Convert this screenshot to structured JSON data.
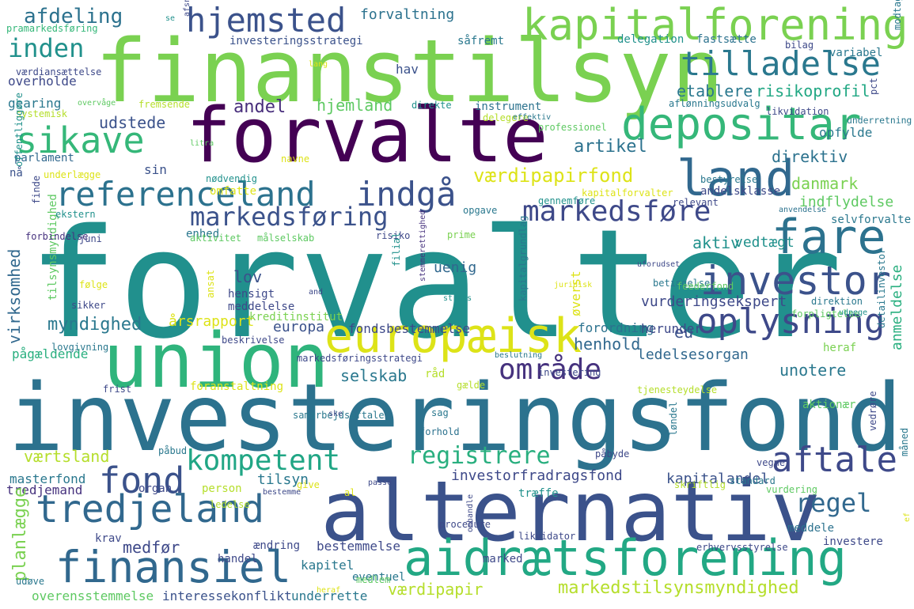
{
  "words": [
    {
      "text": "forvalter",
      "color": "#21908d"
    },
    {
      "text": "investeringsfond",
      "color": "#2c728e"
    },
    {
      "text": "finanstilsyn",
      "color": "#7ad151"
    },
    {
      "text": "alternativ",
      "color": "#3b528b"
    },
    {
      "text": "forvalte",
      "color": "#440154"
    },
    {
      "text": "union",
      "color": "#2fb47c"
    },
    {
      "text": "aidrætsforening",
      "color": "#22a884"
    },
    {
      "text": "kapitalforening",
      "color": "#7ad151"
    },
    {
      "text": "europæisk",
      "color": "#dde318"
    },
    {
      "text": "finansiel",
      "color": "#31688e"
    },
    {
      "text": "depositar",
      "color": "#35b779"
    },
    {
      "text": "land",
      "color": "#31688e"
    },
    {
      "text": "fare",
      "color": "#2c728e"
    },
    {
      "text": "investor",
      "color": "#3b528b"
    },
    {
      "text": "tredjeland",
      "color": "#31688e"
    },
    {
      "text": "oplysning",
      "color": "#3e4989"
    },
    {
      "text": "sikave",
      "color": "#35b779"
    },
    {
      "text": "tilladelse",
      "color": "#2a788e"
    },
    {
      "text": "referenceland",
      "color": "#2c728e"
    },
    {
      "text": "indgå",
      "color": "#3b528b"
    },
    {
      "text": "markedsføre",
      "color": "#3e4989"
    },
    {
      "text": "hjemsted",
      "color": "#3b528b"
    },
    {
      "text": "aftale",
      "color": "#3e4989"
    },
    {
      "text": "fond",
      "color": "#3b528b"
    },
    {
      "text": "område",
      "color": "#46327e"
    },
    {
      "text": "kompetent",
      "color": "#21a685"
    },
    {
      "text": "markedsføring",
      "color": "#3b528b"
    },
    {
      "text": "registrere",
      "color": "#29af7f"
    },
    {
      "text": "regel",
      "color": "#31688e"
    },
    {
      "text": "inden",
      "color": "#21918c"
    },
    {
      "text": "afdeling",
      "color": "#2c728e"
    },
    {
      "text": "værdipapirfond",
      "color": "#dde318"
    },
    {
      "text": "markedstilsynsmyndighed",
      "color": "#b5de2b"
    },
    {
      "text": "myndighed",
      "color": "#2a788e"
    },
    {
      "text": "udstede",
      "color": "#3b528b"
    },
    {
      "text": "andel",
      "color": "#472d7b"
    },
    {
      "text": "hjemland",
      "color": "#5ec962"
    },
    {
      "text": "artikel",
      "color": "#2c728e"
    },
    {
      "text": "etablere",
      "color": "#2a788e"
    },
    {
      "text": "risikoprofil",
      "color": "#22a884"
    },
    {
      "text": "forvaltning",
      "color": "#2c728e"
    },
    {
      "text": "direktiv",
      "color": "#2c728e"
    },
    {
      "text": "danmark",
      "color": "#7ad151"
    },
    {
      "text": "indflydelse",
      "color": "#5ec962"
    },
    {
      "text": "aktiv",
      "color": "#21918c"
    },
    {
      "text": "vedtægt",
      "color": "#21918c"
    },
    {
      "text": "eu",
      "color": "#3b528b"
    },
    {
      "text": "henhold",
      "color": "#31688e"
    },
    {
      "text": "ledelsesorgan",
      "color": "#31688e"
    },
    {
      "text": "unotere",
      "color": "#2a788e"
    },
    {
      "text": "selskab",
      "color": "#2a788e"
    },
    {
      "text": "lov",
      "color": "#3b528b"
    },
    {
      "text": "vurderingsekspert",
      "color": "#3e4989"
    },
    {
      "text": "anmeldelse",
      "color": "#29af7f"
    },
    {
      "text": "værtsland",
      "color": "#b5de2b"
    },
    {
      "text": "investorfradragsfond",
      "color": "#3e4989"
    },
    {
      "text": "tilsyn",
      "color": "#2a788e"
    },
    {
      "text": "kapitalandel",
      "color": "#3b528b"
    },
    {
      "text": "masterfond",
      "color": "#2a788e"
    },
    {
      "text": "tredjemand",
      "color": "#46327e"
    },
    {
      "text": "planlægge",
      "color": "#7ad151"
    },
    {
      "text": "medfør",
      "color": "#3e4989"
    },
    {
      "text": "virksomhed",
      "color": "#31688e"
    },
    {
      "text": "værdipapir",
      "color": "#b5de2b"
    },
    {
      "text": "overensstemmelse",
      "color": "#5ec962"
    },
    {
      "text": "interessekonflikt",
      "color": "#3b528b"
    },
    {
      "text": "underrette",
      "color": "#2a788e"
    },
    {
      "text": "kapitel",
      "color": "#2a788e"
    },
    {
      "text": "fondsbestemmelse",
      "color": "#3e4989"
    },
    {
      "text": "forordning",
      "color": "#2c728e"
    },
    {
      "text": "herunder",
      "color": "#3e4989"
    },
    {
      "text": "pågældende",
      "color": "#29af7f"
    },
    {
      "text": "årsrapport",
      "color": "#dde318"
    },
    {
      "text": "europa",
      "color": "#3b528b"
    },
    {
      "text": "uenig",
      "color": "#31688e"
    },
    {
      "text": "omfatte",
      "color": "#dde318"
    },
    {
      "text": "parlament",
      "color": "#31688e"
    },
    {
      "text": "opfylde",
      "color": "#2a788e"
    },
    {
      "text": "andelsklasse",
      "color": "#3e4989"
    },
    {
      "text": "instrument",
      "color": "#2c728e"
    },
    {
      "text": "delegation",
      "color": "#21918c"
    },
    {
      "text": "fastsætte",
      "color": "#2c728e"
    },
    {
      "text": "variabel",
      "color": "#2a788e"
    },
    {
      "text": "såfremt",
      "color": "#2a788e"
    },
    {
      "text": "investeringsstrategi",
      "color": "#3b528b"
    },
    {
      "text": "overholde",
      "color": "#3e4989"
    },
    {
      "text": "gearing",
      "color": "#2a788e"
    },
    {
      "text": "hav",
      "color": "#3b528b"
    },
    {
      "text": "enhed",
      "color": "#2a788e"
    },
    {
      "text": "hensigt",
      "color": "#3e4989"
    },
    {
      "text": "meddelelse",
      "color": "#3e4989"
    },
    {
      "text": "aktionær",
      "color": "#5ec962"
    },
    {
      "text": "heraf",
      "color": "#7ad151"
    },
    {
      "text": "selvforvalte",
      "color": "#2a788e"
    },
    {
      "text": "meddele",
      "color": "#2c728e"
    },
    {
      "text": "investere",
      "color": "#3e4989"
    },
    {
      "text": "bestemmelse",
      "color": "#3e4989"
    },
    {
      "text": "ændring",
      "color": "#3e4989"
    },
    {
      "text": "træffe",
      "color": "#21918c"
    },
    {
      "text": "krav",
      "color": "#3e4989"
    },
    {
      "text": "marked",
      "color": "#3e4989"
    },
    {
      "text": "tilsynsmyndighed",
      "color": "#5ec962"
    },
    {
      "text": "nå",
      "color": "#3b528b"
    },
    {
      "text": "sin",
      "color": "#3b528b"
    },
    {
      "text": "organ",
      "color": "#3e4989"
    },
    {
      "text": "person",
      "color": "#b5de2b"
    },
    {
      "text": "råd",
      "color": "#b5de2b"
    },
    {
      "text": "eventuel",
      "color": "#2a788e"
    },
    {
      "text": "handel",
      "color": "#3e4989"
    },
    {
      "text": "kreditinstitut",
      "color": "#7ad151"
    },
    {
      "text": "øverst",
      "color": "#dde318"
    },
    {
      "text": "ansat",
      "color": "#dde318"
    },
    {
      "text": "risiko",
      "color": "#3e4989"
    },
    {
      "text": "aktivitet",
      "color": "#5ec962"
    },
    {
      "text": "målselskab",
      "color": "#5ec962"
    },
    {
      "text": "forbindelse",
      "color": "#46327e"
    },
    {
      "text": "ekstern",
      "color": "#21918c"
    },
    {
      "text": "opgave",
      "color": "#2a788e"
    },
    {
      "text": "gennemføre",
      "color": "#21918c"
    },
    {
      "text": "kapitalforvalter",
      "color": "#dde318"
    },
    {
      "text": "relevant",
      "color": "#3e4989"
    },
    {
      "text": "anvendelse",
      "color": "#2c728e"
    },
    {
      "text": "bestyrelse",
      "color": "#2a788e"
    },
    {
      "text": "professionel",
      "color": "#5ec962"
    },
    {
      "text": "delegere",
      "color": "#b5de2b"
    },
    {
      "text": "direkte",
      "color": "#21918c"
    },
    {
      "text": "effektiv",
      "color": "#2a788e"
    },
    {
      "text": "fremsende",
      "color": "#b5de2b"
    },
    {
      "text": "overvåge",
      "color": "#5ec962"
    },
    {
      "text": "systemisk",
      "color": "#b5de2b"
    },
    {
      "text": "værdiansættelse",
      "color": "#3e4989"
    },
    {
      "text": "pramarkedsføring",
      "color": "#35b779"
    },
    {
      "text": "offentliggøre",
      "color": "#21918c"
    },
    {
      "text": "litra",
      "color": "#5ec962"
    },
    {
      "text": "nødvendig",
      "color": "#21918c"
    },
    {
      "text": "underlægge",
      "color": "#dde318"
    },
    {
      "text": "finde",
      "color": "#3e4989"
    },
    {
      "text": "navne",
      "color": "#dde318"
    },
    {
      "text": "juni",
      "color": "#3e4989"
    },
    {
      "text": "prime",
      "color": "#7ad151"
    },
    {
      "text": "filial",
      "color": "#21918c"
    },
    {
      "text": "stemmerettighed",
      "color": "#46327e"
    },
    {
      "text": "følge",
      "color": "#dde318"
    },
    {
      "text": "sikker",
      "color": "#3e4989"
    },
    {
      "text": "and",
      "color": "#3e4989"
    },
    {
      "text": "straks",
      "color": "#21918c"
    },
    {
      "text": "kapitalgrundlag",
      "color": "#2a788e"
    },
    {
      "text": "juridisk",
      "color": "#dde318"
    },
    {
      "text": "uforudset",
      "color": "#3e4989"
    },
    {
      "text": "betingelse",
      "color": "#2a788e"
    },
    {
      "text": "feederfond",
      "color": "#5ec962"
    },
    {
      "text": "direktion",
      "color": "#2a788e"
    },
    {
      "text": "detailinvestor",
      "color": "#2a788e"
    },
    {
      "text": "forpligtelse",
      "color": "#5ec962"
    },
    {
      "text": "udpege",
      "color": "#21918c"
    },
    {
      "text": "beskrivelse",
      "color": "#3e4989"
    },
    {
      "text": "markedsføringsstrategi",
      "color": "#3e4989"
    },
    {
      "text": "beslutning",
      "color": "#2a788e"
    },
    {
      "text": "lovgivning",
      "color": "#2a788e"
    },
    {
      "text": "gælde",
      "color": "#b5de2b"
    },
    {
      "text": "investering",
      "color": "#3e4989"
    },
    {
      "text": "frist",
      "color": "#3e4989"
    },
    {
      "text": "foranstaltning",
      "color": "#dde318"
    },
    {
      "text": "tjenesteydelse",
      "color": "#b5de2b"
    },
    {
      "text": "vedrøre",
      "color": "#3e4989"
    },
    {
      "text": "samarbejdsaftale",
      "color": "#2a788e"
    },
    {
      "text": "ske",
      "color": "#3e4989"
    },
    {
      "text": "sag",
      "color": "#2a788e"
    },
    {
      "text": "forhold",
      "color": "#2c728e"
    },
    {
      "text": "løndel",
      "color": "#2a788e"
    },
    {
      "text": "påbud",
      "color": "#2a788e"
    },
    {
      "text": "passe",
      "color": "#3e4989"
    },
    {
      "text": "påbyde",
      "color": "#3e4989"
    },
    {
      "text": "vegne",
      "color": "#3e4989"
    },
    {
      "text": "al",
      "color": "#dde318"
    },
    {
      "text": "give",
      "color": "#dde318"
    },
    {
      "text": "bestemme",
      "color": "#3e4989"
    },
    {
      "text": "skriftlig",
      "color": "#b5de2b"
    },
    {
      "text": "standard",
      "color": "#2a788e"
    },
    {
      "text": "vurdering",
      "color": "#5ec962"
    },
    {
      "text": "ledelse",
      "color": "#b5de2b"
    },
    {
      "text": "procedure",
      "color": "#3e4989"
    },
    {
      "text": "likvidator",
      "color": "#3e4989"
    },
    {
      "text": "erhvervsstyrelse",
      "color": "#3e4989"
    },
    {
      "text": "omhandle",
      "color": "#3e4989"
    },
    {
      "text": "udøve",
      "color": "#2a788e"
    },
    {
      "text": "medlem",
      "color": "#5ec962"
    },
    {
      "text": "heraf",
      "color": "#dde318"
    },
    {
      "text": "ef",
      "color": "#dde318"
    },
    {
      "text": "måned",
      "color": "#2a788e"
    },
    {
      "text": "se",
      "color": "#21918c"
    },
    {
      "text": "afsnit",
      "color": "#3e4989"
    },
    {
      "text": "lang",
      "color": "#dde318"
    },
    {
      "text": "bilag",
      "color": "#3e4989"
    },
    {
      "text": "modtage",
      "color": "#2a788e"
    },
    {
      "text": "pct",
      "color": "#3e4989"
    },
    {
      "text": "likvidation",
      "color": "#3e4989"
    },
    {
      "text": "aflønningsudvalg",
      "color": "#2a788e"
    },
    {
      "text": "underretning",
      "color": "#2a788e"
    },
    {
      "text": "væsentlig",
      "color": "#2a788e"
    }
  ]
}
